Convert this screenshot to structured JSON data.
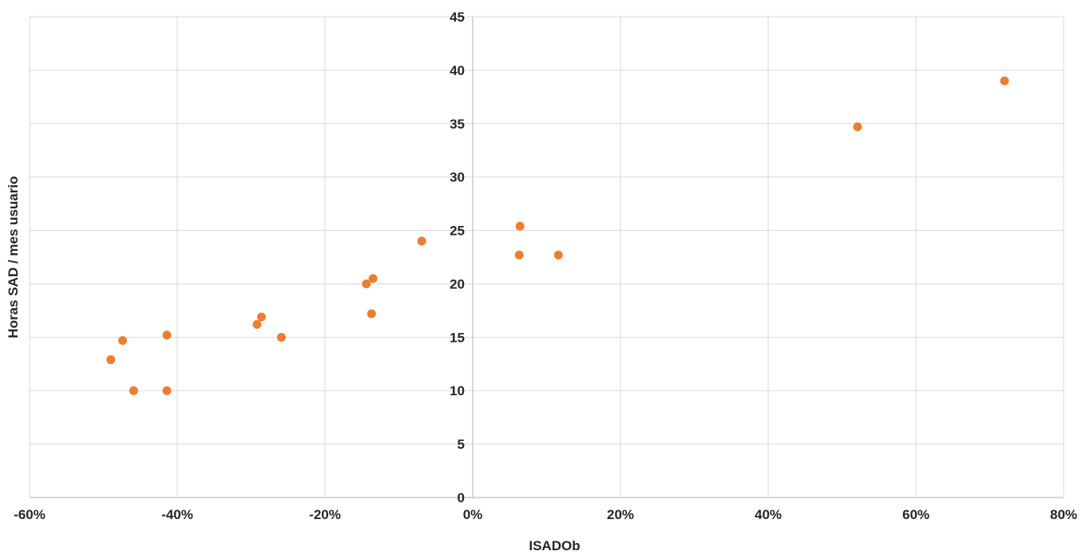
{
  "chart_data": {
    "type": "scatter",
    "title": "",
    "xlabel": "ISADOb",
    "ylabel": "Horas SAD / mes  usuario",
    "xlim": [
      -0.6,
      0.8
    ],
    "ylim": [
      0,
      45
    ],
    "x_ticks": [
      -0.6,
      -0.4,
      -0.2,
      0,
      0.2,
      0.4,
      0.6,
      0.8
    ],
    "x_tick_labels": [
      "-60%",
      "-40%",
      "-20%",
      "0%",
      "20%",
      "40%",
      "60%",
      "80%"
    ],
    "y_ticks": [
      0,
      5,
      10,
      15,
      20,
      25,
      30,
      35,
      40,
      45
    ],
    "y_tick_labels": [
      "0",
      "5",
      "10",
      "15",
      "20",
      "25",
      "30",
      "35",
      "40",
      "45"
    ],
    "grid": true,
    "marker_color": "#ED7D31",
    "gridline_color": "#D9D9D9",
    "axis_color": "#BFBFBF",
    "series": [
      {
        "points": [
          {
            "x": -0.49,
            "y": 12.9
          },
          {
            "x": -0.474,
            "y": 14.7
          },
          {
            "x": -0.459,
            "y": 10.0
          },
          {
            "x": -0.414,
            "y": 15.2
          },
          {
            "x": -0.414,
            "y": 10.0
          },
          {
            "x": -0.292,
            "y": 16.2
          },
          {
            "x": -0.286,
            "y": 16.9
          },
          {
            "x": -0.259,
            "y": 15.0
          },
          {
            "x": -0.144,
            "y": 20.0
          },
          {
            "x": -0.135,
            "y": 20.5
          },
          {
            "x": -0.137,
            "y": 17.2
          },
          {
            "x": -0.069,
            "y": 24.0
          },
          {
            "x": 0.064,
            "y": 25.4
          },
          {
            "x": 0.063,
            "y": 22.7
          },
          {
            "x": 0.116,
            "y": 22.7
          },
          {
            "x": 0.521,
            "y": 34.7
          },
          {
            "x": 0.72,
            "y": 39.0
          }
        ]
      }
    ]
  }
}
